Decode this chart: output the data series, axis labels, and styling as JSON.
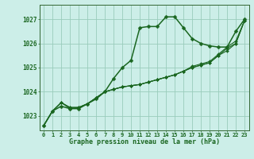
{
  "title": "Graphe pression niveau de la mer (hPa)",
  "background_color": "#cceee8",
  "grid_color": "#99ccbb",
  "line_color": "#1a6620",
  "marker_color": "#1a6620",
  "xlim": [
    -0.5,
    23.5
  ],
  "ylim": [
    1022.4,
    1027.6
  ],
  "yticks": [
    1023,
    1024,
    1025,
    1026,
    1027
  ],
  "xticks": [
    0,
    1,
    2,
    3,
    4,
    5,
    6,
    7,
    8,
    9,
    10,
    11,
    12,
    13,
    14,
    15,
    16,
    17,
    18,
    19,
    20,
    21,
    22,
    23
  ],
  "series": [
    [
      1022.6,
      1023.2,
      1023.4,
      1023.3,
      1023.3,
      1023.5,
      1023.7,
      1024.0,
      1024.55,
      1025.0,
      1025.3,
      1026.65,
      1026.7,
      1026.7,
      1027.1,
      1027.1,
      1026.65,
      1026.2,
      1026.0,
      1025.9,
      1025.85,
      1025.85,
      1026.5,
      1027.0
    ],
    [
      1022.6,
      1023.2,
      1023.55,
      1023.3,
      1023.35,
      1023.5,
      1023.75,
      1024.0,
      1024.1,
      1024.2,
      1024.25,
      1024.3,
      1024.4,
      1024.5,
      1024.6,
      1024.7,
      1024.85,
      1025.0,
      1025.1,
      1025.2,
      1025.5,
      1025.7,
      1026.0,
      1026.95
    ],
    [
      1022.6,
      1023.2,
      1023.55,
      1023.35,
      1023.35,
      1023.5,
      1023.75,
      1024.0,
      1024.1,
      1024.2,
      1024.25,
      1024.3,
      1024.4,
      1024.5,
      1024.6,
      1024.7,
      1024.85,
      1025.0,
      1025.1,
      1025.2,
      1025.5,
      1025.8,
      1026.0,
      1026.95
    ],
    [
      1022.6,
      1023.2,
      1023.55,
      1023.35,
      1023.35,
      1023.5,
      1023.75,
      1024.0,
      1024.1,
      1024.2,
      1024.25,
      1024.3,
      1024.4,
      1024.5,
      1024.6,
      1024.7,
      1024.85,
      1025.05,
      1025.15,
      1025.25,
      1025.55,
      1025.85,
      1026.1,
      1026.95
    ]
  ],
  "ylabel_fontsize": 5.5,
  "xlabel_fontsize": 5.0,
  "title_fontsize": 6.0
}
